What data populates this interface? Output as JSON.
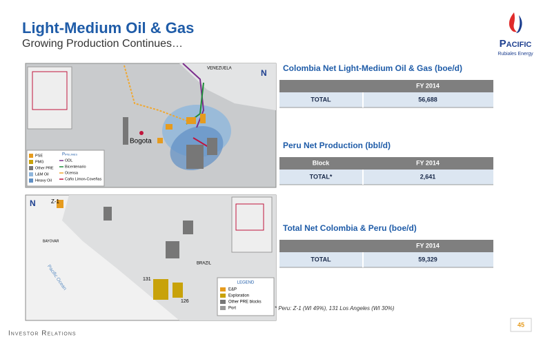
{
  "header": {
    "title": "Light-Medium Oil & Gas",
    "subtitle": "Growing Production Continues…"
  },
  "logo": {
    "name": "Pacific",
    "tagline": "Rubiales Energy"
  },
  "map_colombia": {
    "north": "N",
    "country": "VENEZUELA",
    "city": "Bogota",
    "legend": [
      "PSE",
      "PMG",
      "Other PRE",
      "L&M Oil",
      "Heavy Oil"
    ],
    "pipelines_title": "Pipelines",
    "pipelines": [
      "ODL",
      "Bicentenario",
      "Ocensa",
      "Caño Limon-Coveñas"
    ]
  },
  "map_peru": {
    "north": "N",
    "block_z1": "Z-1",
    "port": "BAYOVAR",
    "ocean": "Pacific Ocean",
    "country": "BRAZIL",
    "block_131": "131",
    "block_126": "126",
    "legend_title": "LEGEND",
    "legend": [
      "E&P",
      "Exploration",
      "Other PRE blocks",
      "Port"
    ]
  },
  "tables": [
    {
      "title": "Colombia Net Light-Medium Oil & Gas (boe/d)",
      "header": [
        "FY 2014"
      ],
      "rows": [
        [
          "TOTAL",
          "56,688"
        ]
      ]
    },
    {
      "title": "Peru Net Production (bbl/d)",
      "header": [
        "Block",
        "FY 2014"
      ],
      "rows": [
        [
          "TOTAL*",
          "2,641"
        ]
      ]
    },
    {
      "title": "Total Net Colombia & Peru (boe/d)",
      "header": [
        "FY 2014"
      ],
      "rows": [
        [
          "TOTAL",
          "59,329"
        ]
      ]
    }
  ],
  "footnote": "* Peru: Z-1 (WI 49%), 131 Los Angeles (WI 30%)",
  "footer": {
    "label": "Investor Relations",
    "page": "45"
  }
}
